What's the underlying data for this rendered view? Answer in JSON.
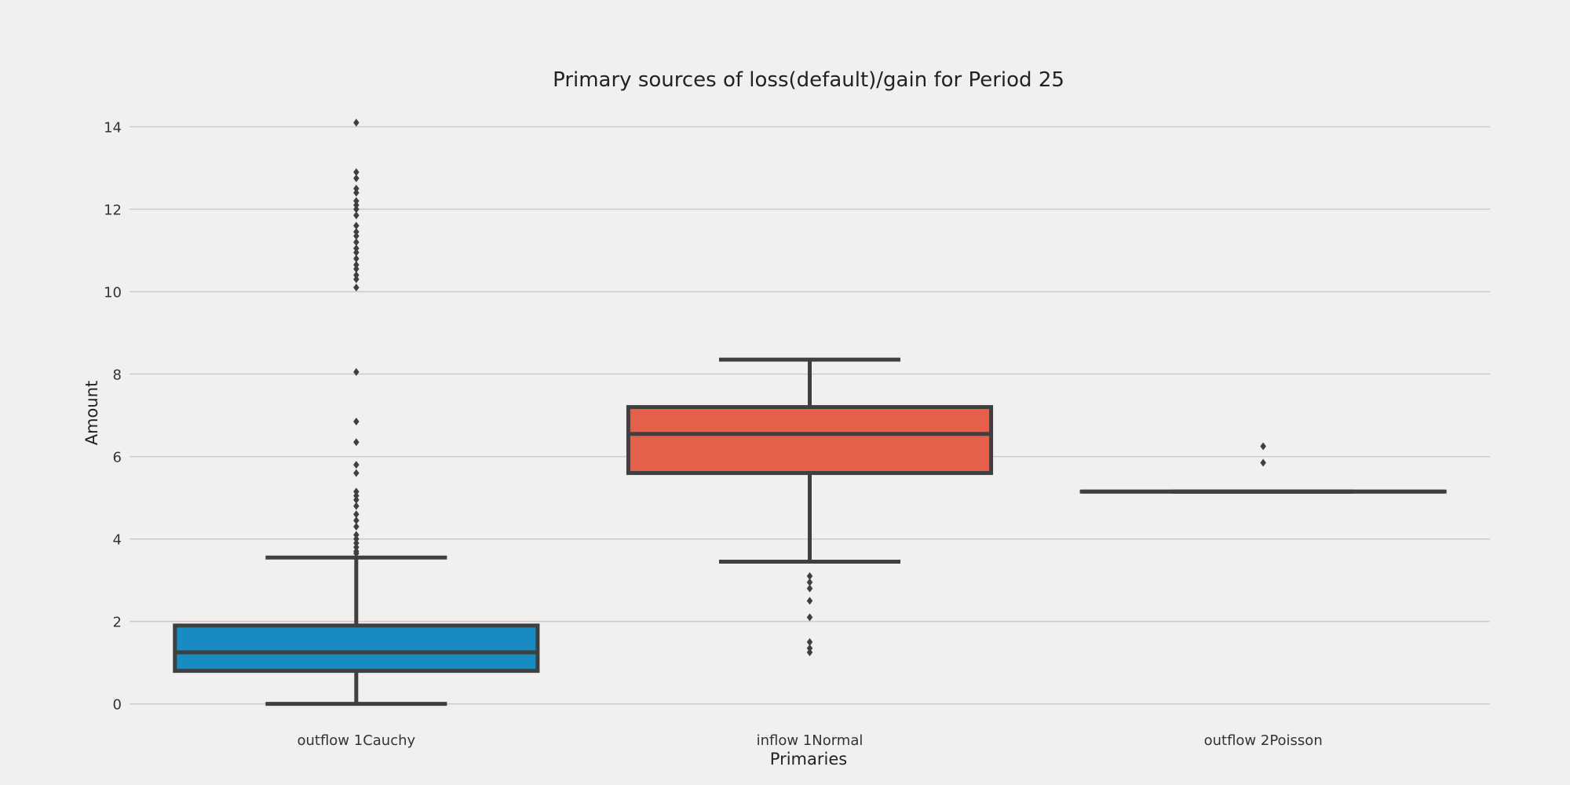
{
  "chart_data": {
    "type": "box",
    "title": "Primary sources of loss(default)/gain for Period 25",
    "xlabel": "Primaries",
    "ylabel": "Amount",
    "ylim": [
      -0.35,
      14.6
    ],
    "yticks": [
      0,
      2,
      4,
      6,
      8,
      10,
      12,
      14
    ],
    "grid": "horizontal",
    "categories": [
      "outflow 1Cauchy",
      "inflow 1Normal",
      "outflow 2Poisson"
    ],
    "series": [
      {
        "category": "outflow 1Cauchy",
        "color": "#188bc2",
        "whisker_low": 0.0,
        "q1": 0.8,
        "median": 1.25,
        "q3": 1.9,
        "whisker_high": 3.55,
        "outliers": [
          3.65,
          3.7,
          3.8,
          3.9,
          4.0,
          4.1,
          4.3,
          4.45,
          4.6,
          4.8,
          4.95,
          5.05,
          5.15,
          5.6,
          5.8,
          6.35,
          6.85,
          8.05,
          10.1,
          10.3,
          10.4,
          10.55,
          10.65,
          10.8,
          10.95,
          11.05,
          11.2,
          11.35,
          11.45,
          11.6,
          11.85,
          12.0,
          12.1,
          12.2,
          12.4,
          12.5,
          12.75,
          12.9,
          14.1
        ]
      },
      {
        "category": "inflow 1Normal",
        "color": "#e5604a",
        "whisker_low": 3.45,
        "q1": 5.6,
        "median": 6.55,
        "q3": 7.2,
        "whisker_high": 8.35,
        "outliers": [
          3.1,
          2.95,
          2.8,
          2.5,
          2.1,
          1.5,
          1.35,
          1.25
        ]
      },
      {
        "category": "outflow 2Poisson",
        "color": "#e5604a",
        "whisker_low": 5.15,
        "q1": 5.15,
        "median": 5.15,
        "q3": 5.15,
        "whisker_high": 5.15,
        "outliers": [
          5.85,
          6.25
        ]
      }
    ]
  }
}
